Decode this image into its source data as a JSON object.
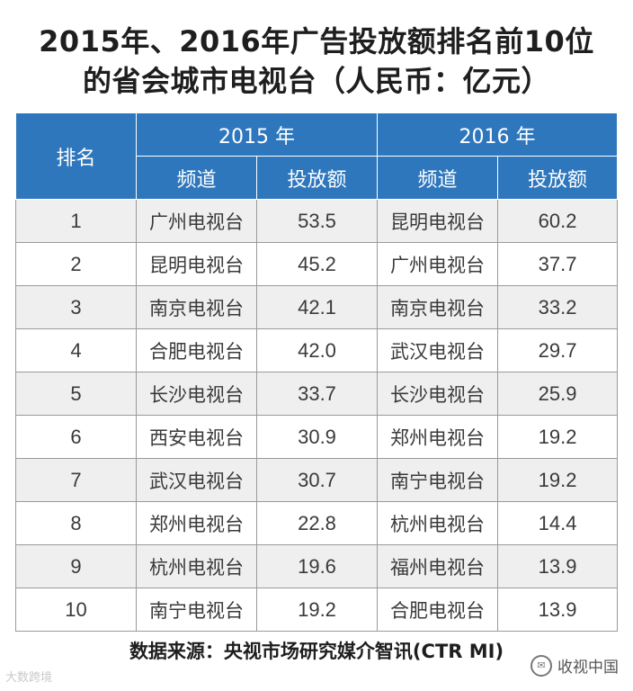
{
  "title": {
    "line1": "2015年、2016年广告投放额排名前10位",
    "line2": "的省会城市电视台（人民币：亿元）"
  },
  "table": {
    "header": {
      "rank": "排名",
      "year_2015": "2015 年",
      "year_2016": "2016 年",
      "channel_2015": "频道",
      "amount_2015": "投放额",
      "channel_2016": "频道",
      "amount_2016": "投放额"
    },
    "rows": [
      {
        "rank": "1",
        "ch2015": "广州电视台",
        "amt2015": "53.5",
        "ch2016": "昆明电视台",
        "amt2016": "60.2"
      },
      {
        "rank": "2",
        "ch2015": "昆明电视台",
        "amt2015": "45.2",
        "ch2016": "广州电视台",
        "amt2016": "37.7"
      },
      {
        "rank": "3",
        "ch2015": "南京电视台",
        "amt2015": "42.1",
        "ch2016": "南京电视台",
        "amt2016": "33.2"
      },
      {
        "rank": "4",
        "ch2015": "合肥电视台",
        "amt2015": "42.0",
        "ch2016": "武汉电视台",
        "amt2016": "29.7"
      },
      {
        "rank": "5",
        "ch2015": "长沙电视台",
        "amt2015": "33.7",
        "ch2016": "长沙电视台",
        "amt2016": "25.9"
      },
      {
        "rank": "6",
        "ch2015": "西安电视台",
        "amt2015": "30.9",
        "ch2016": "郑州电视台",
        "amt2016": "19.2"
      },
      {
        "rank": "7",
        "ch2015": "武汉电视台",
        "amt2015": "30.7",
        "ch2016": "南宁电视台",
        "amt2016": "19.2"
      },
      {
        "rank": "8",
        "ch2015": "郑州电视台",
        "amt2015": "22.8",
        "ch2016": "杭州电视台",
        "amt2016": "14.4"
      },
      {
        "rank": "9",
        "ch2015": "杭州电视台",
        "amt2015": "19.6",
        "ch2016": "福州电视台",
        "amt2016": "13.9"
      },
      {
        "rank": "10",
        "ch2015": "南宁电视台",
        "amt2015": "19.2",
        "ch2016": "合肥电视台",
        "amt2016": "13.9"
      }
    ]
  },
  "source": "数据来源：央视市场研究媒介智讯(CTR MI)",
  "watermark": {
    "left": "大数跨境",
    "right": "收视中国",
    "right_icon": "wechat-icon"
  },
  "colors": {
    "header_bg": "#2f77bd",
    "row_alt_bg": "#efefef"
  }
}
